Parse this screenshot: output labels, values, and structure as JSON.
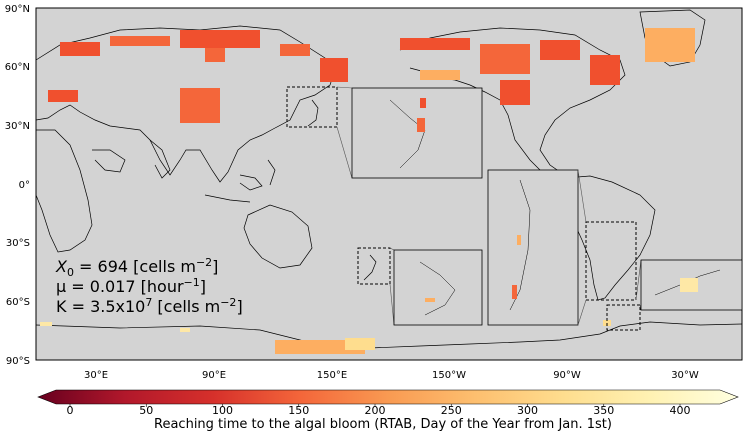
{
  "map": {
    "lat_labels": [
      "90°N",
      "60°N",
      "30°N",
      "0°",
      "30°S",
      "60°S",
      "90°S"
    ],
    "lon_labels": [
      "30°E",
      "90°E",
      "150°E",
      "150°W",
      "90°W",
      "30°W"
    ],
    "colors": {
      "ocean": "#d3d3d3",
      "coast": "#000000",
      "bloom_early": "#f0502e",
      "bloom_mid": "#fdae61",
      "bloom_late": "#fee8a6"
    }
  },
  "params": {
    "x0_symbol": "X",
    "x0_sub": "0",
    "x0_rest": " = 694 [cells m",
    "x0_sup": "−2",
    "x0_end": "]",
    "mu_text": "μ = 0.017 [hour",
    "mu_sup": "−1",
    "mu_end": "]",
    "k_text": "K = 3.5x10",
    "k_sup": "7",
    "k_mid": " [cells m",
    "k_sup2": "−2",
    "k_end": "]"
  },
  "colorbar": {
    "title": "Reaching time to the algal bloom (RTAB, Day of the Year from Jan. 1st)",
    "ticks": [
      "0",
      "50",
      "100",
      "150",
      "200",
      "250",
      "300",
      "350",
      "400"
    ],
    "stops": [
      "#67001f",
      "#b2182b",
      "#d6302b",
      "#f4663a",
      "#f99a52",
      "#fdbf6f",
      "#fedd8e",
      "#fff2b3",
      "#ffffe0"
    ]
  }
}
